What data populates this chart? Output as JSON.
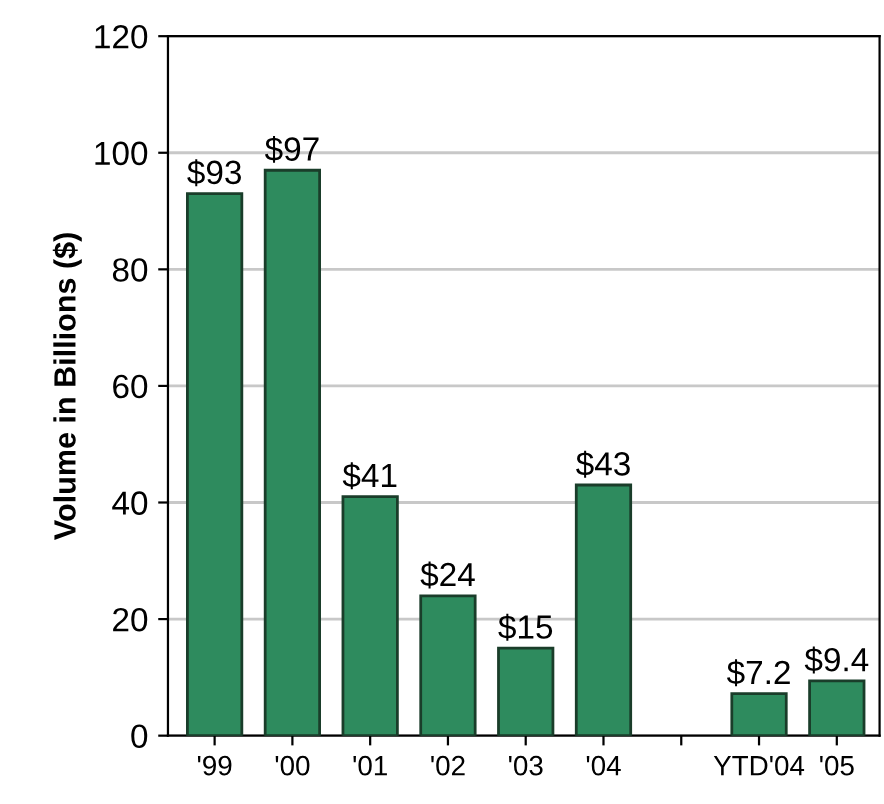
{
  "chart_data": {
    "type": "bar",
    "ylabel": "Volume in Billions ($)",
    "categories": [
      "'99",
      "'00",
      "'01",
      "'02",
      "'03",
      "'04",
      null,
      "YTD'04",
      "'05"
    ],
    "values": [
      93,
      97,
      41,
      24,
      15,
      43,
      null,
      7.2,
      9.4
    ],
    "value_labels": [
      "$93",
      "$97",
      "$41",
      "$24",
      "$15",
      "$43",
      null,
      "$7.2",
      "$9.4"
    ],
    "color": "#2e8b5e",
    "ylim": [
      0,
      120
    ],
    "yticks": [
      0,
      20,
      40,
      60,
      80,
      100,
      120
    ],
    "grid": "y"
  }
}
